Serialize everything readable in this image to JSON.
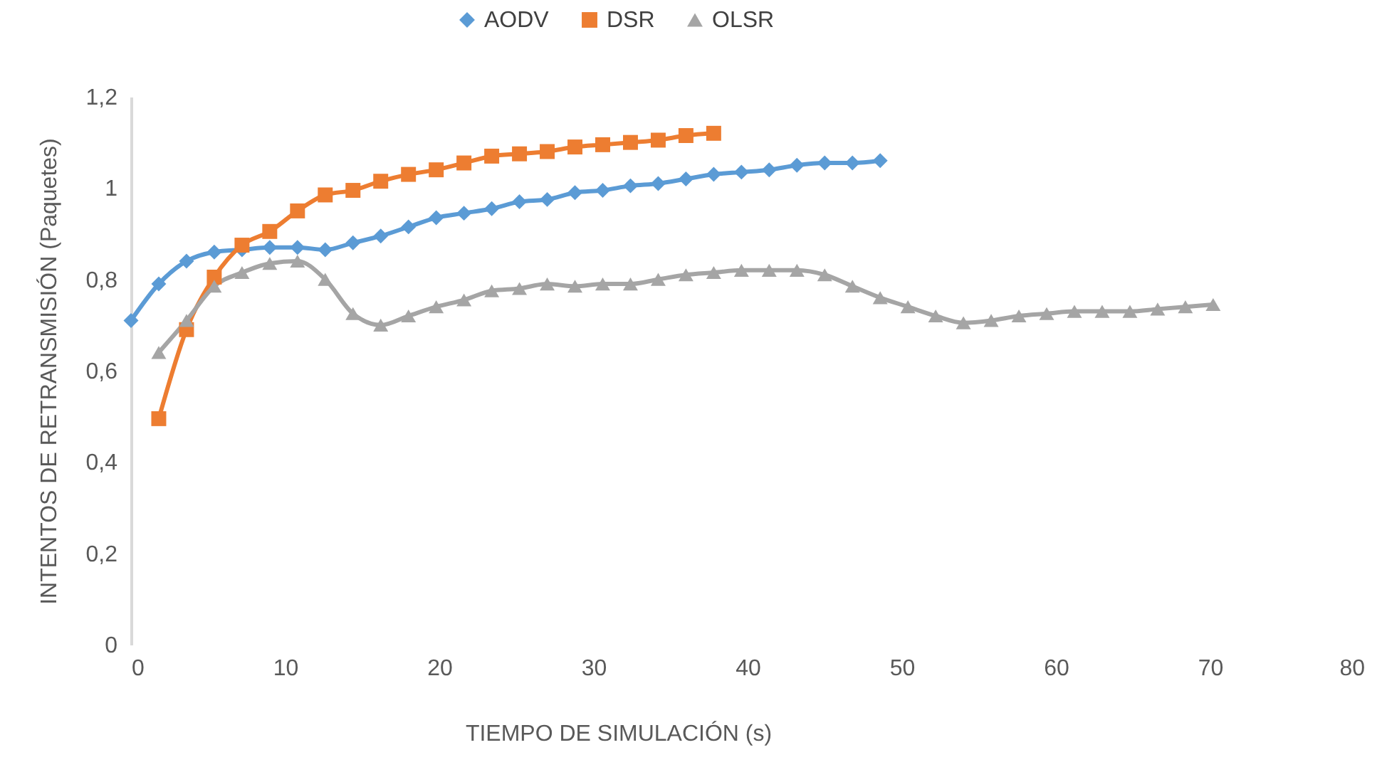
{
  "chart_data": {
    "type": "line",
    "xlabel": "TIEMPO DE SIMULACIÓN (s)",
    "ylabel": "INTENTOS DE RETRANSMISIÓN (Paquetes)",
    "xlim": [
      0,
      80
    ],
    "xticks": [
      0,
      10,
      20,
      30,
      40,
      50,
      60,
      70,
      80
    ],
    "ylim": [
      0,
      1.2
    ],
    "yticks": [
      0,
      {
        "value": 0.2,
        "label": "0,2"
      },
      {
        "value": 0.4,
        "label": "0,4"
      },
      {
        "value": 0.6,
        "label": "0,6"
      },
      {
        "value": 0.8,
        "label": "0,8"
      },
      1,
      {
        "value": 1.2,
        "label": "1,2"
      }
    ],
    "grid": false,
    "legend": "top",
    "line_style": "solid",
    "series": [
      {
        "name": "AODV",
        "color": "#5b9bd5",
        "marker": "diamond",
        "x": [
          0,
          1.8,
          3.6,
          5.4,
          7.2,
          9,
          10.8,
          12.6,
          14.4,
          16.2,
          18,
          19.8,
          21.6,
          23.4,
          25.2,
          27,
          28.8,
          30.6,
          32.4,
          34.2,
          36,
          37.8,
          39.6,
          41.4,
          43.2,
          45,
          46.8,
          48.6
        ],
        "values": [
          0.71,
          0.79,
          0.84,
          0.86,
          0.865,
          0.87,
          0.87,
          0.865,
          0.88,
          0.895,
          0.915,
          0.935,
          0.945,
          0.955,
          0.97,
          0.975,
          0.99,
          0.995,
          1.005,
          1.01,
          1.02,
          1.03,
          1.035,
          1.04,
          1.05,
          1.055,
          1.055,
          1.06
        ]
      },
      {
        "name": "DSR",
        "color": "#ed7d31",
        "marker": "square",
        "x": [
          1.8,
          3.6,
          5.4,
          7.2,
          9,
          10.8,
          12.6,
          14.4,
          16.2,
          18,
          19.8,
          21.6,
          23.4,
          25.2,
          27,
          28.8,
          30.6,
          32.4,
          34.2,
          36,
          37.8
        ],
        "values": [
          0.495,
          0.69,
          0.805,
          0.875,
          0.905,
          0.95,
          0.985,
          0.995,
          1.015,
          1.03,
          1.04,
          1.055,
          1.07,
          1.075,
          1.08,
          1.09,
          1.095,
          1.1,
          1.105,
          1.115,
          1.12
        ]
      },
      {
        "name": "OLSR",
        "color": "#a5a5a5",
        "marker": "triangle",
        "x": [
          1.8,
          3.6,
          5.4,
          7.2,
          9,
          10.8,
          12.6,
          14.4,
          16.2,
          18,
          19.8,
          21.6,
          23.4,
          25.2,
          27,
          28.8,
          30.6,
          32.4,
          34.2,
          36,
          37.8,
          39.6,
          41.4,
          43.2,
          45,
          46.8,
          48.6,
          50.4,
          52.2,
          54,
          55.8,
          57.6,
          59.4,
          61.2,
          63,
          64.8,
          66.6,
          68.4,
          70.2
        ],
        "values": [
          0.64,
          0.71,
          0.785,
          0.815,
          0.835,
          0.84,
          0.8,
          0.725,
          0.7,
          0.72,
          0.74,
          0.755,
          0.775,
          0.78,
          0.79,
          0.785,
          0.79,
          0.79,
          0.8,
          0.81,
          0.815,
          0.82,
          0.82,
          0.82,
          0.81,
          0.785,
          0.76,
          0.74,
          0.72,
          0.705,
          0.71,
          0.72,
          0.725,
          0.73,
          0.73,
          0.73,
          0.735,
          0.74,
          0.745
        ]
      }
    ]
  }
}
